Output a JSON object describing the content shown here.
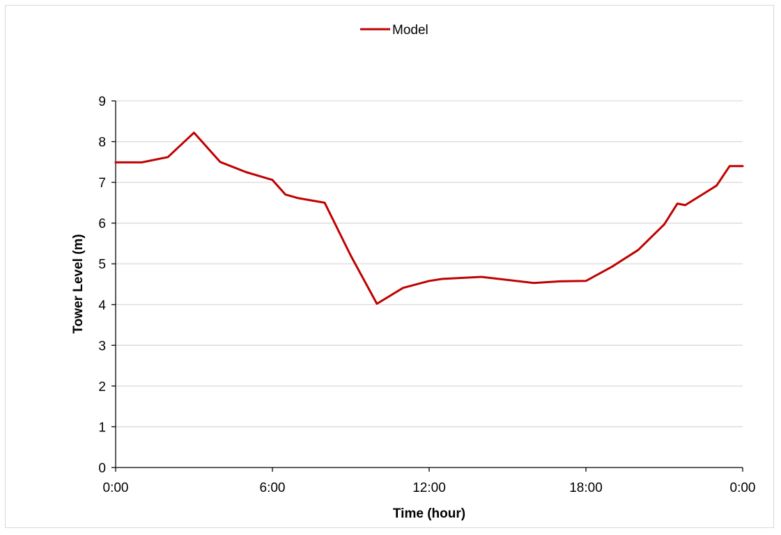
{
  "chart_data": {
    "type": "line",
    "title": "",
    "xlabel": "Time (hour)",
    "ylabel": "Tower Level (m)",
    "xlim": [
      0,
      24
    ],
    "ylim": [
      0,
      9
    ],
    "x_ticks": [
      {
        "value": 0,
        "label": "0:00"
      },
      {
        "value": 6,
        "label": "6:00"
      },
      {
        "value": 12,
        "label": "12:00"
      },
      {
        "value": 18,
        "label": "18:00"
      },
      {
        "value": 24,
        "label": "0:00"
      }
    ],
    "y_ticks": [
      0,
      1,
      2,
      3,
      4,
      5,
      6,
      7,
      8,
      9
    ],
    "grid": "horizontal",
    "legend": {
      "position": "top-center"
    },
    "colors": {
      "series": "#c00000",
      "grid": "#d9d9d9",
      "axis": "#000000"
    },
    "series": [
      {
        "name": "Model",
        "x": [
          0,
          1,
          2,
          3,
          4,
          5,
          6,
          6.5,
          7,
          8,
          9,
          10,
          11,
          12,
          12.5,
          14,
          16,
          17,
          18,
          19,
          20,
          21,
          21.5,
          21.8,
          23,
          23.5,
          24
        ],
        "y": [
          7.49,
          7.49,
          7.62,
          8.22,
          7.5,
          7.25,
          7.06,
          6.7,
          6.61,
          6.5,
          5.2,
          4.02,
          4.41,
          4.58,
          4.63,
          4.68,
          4.53,
          4.57,
          4.58,
          4.93,
          5.34,
          5.97,
          6.48,
          6.44,
          6.92,
          7.4,
          7.4
        ]
      }
    ]
  }
}
